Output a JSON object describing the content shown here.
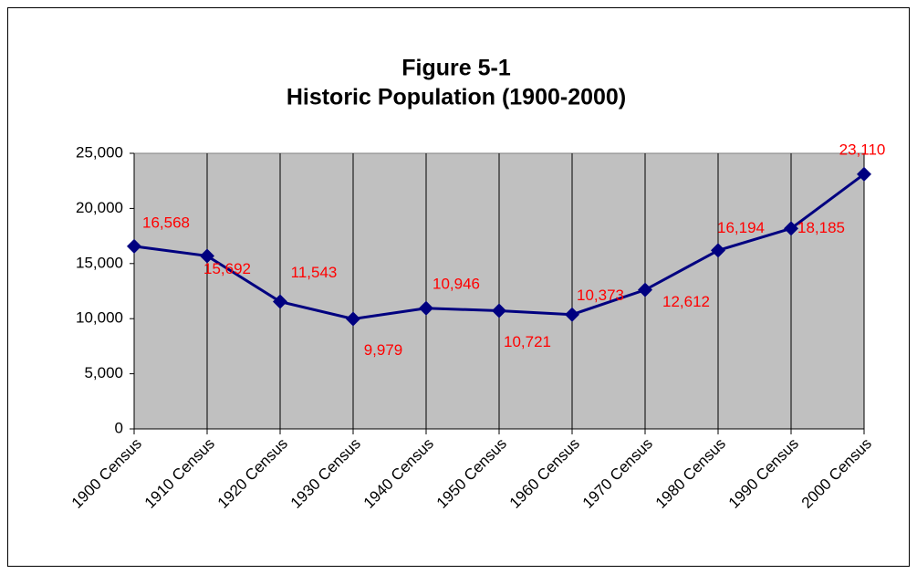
{
  "chart_data": {
    "type": "line",
    "title": "Figure 5-1",
    "subtitle": "Historic Population (1900-2000)",
    "categories": [
      "1900 Census",
      "1910 Census",
      "1920 Census",
      "1930 Census",
      "1940 Census",
      "1950 Census",
      "1960 Census",
      "1970 Census",
      "1980 Census",
      "1990 Census",
      "2000 Census"
    ],
    "values": [
      16568,
      15692,
      11543,
      9979,
      10946,
      10721,
      10373,
      12612,
      16194,
      18185,
      23110
    ],
    "value_labels": [
      "16,568",
      "15,692",
      "11,543",
      "9,979",
      "10,946",
      "10,721",
      "10,373",
      "12,612",
      "16,194",
      "18,185",
      "23,110"
    ],
    "color": "#000080",
    "label_color": "#ff0000",
    "plot_background": "#c0c0c0",
    "ylim": [
      0,
      25000
    ],
    "yticks": [
      0,
      {
        "value": 5000,
        "label": "5,000"
      },
      {
        "value": 10000,
        "label": "10,000"
      },
      {
        "value": 15000,
        "label": "15,000"
      },
      {
        "value": 20000,
        "label": "20,000"
      },
      {
        "value": 25000,
        "label": "25,000"
      }
    ],
    "vertical_grid": true
  }
}
